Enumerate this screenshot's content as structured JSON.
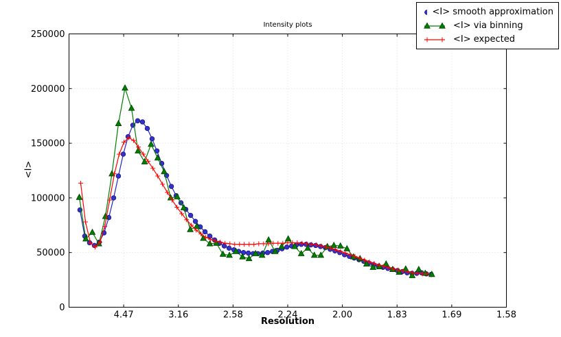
{
  "title": "Intensity plots",
  "xlabel": "Resolution",
  "ylabel": "<I>",
  "legend": [
    {
      "label": "<I> smooth approximation",
      "marker": "circle",
      "color": "#2222cc"
    },
    {
      "label": "<I> via binning",
      "marker": "triangle",
      "color": "#007f00"
    },
    {
      "label": "<I> expected",
      "marker": "plus",
      "color": "#ff0000"
    }
  ],
  "chart_data": {
    "type": "line",
    "title": "Intensity plots",
    "xlabel": "Resolution",
    "ylabel": "<I>",
    "xlim": [
      0,
      0.4
    ],
    "ylim": [
      0,
      250000
    ],
    "grid": true,
    "legend_position": "upper right outside",
    "x_ticks": [
      {
        "x": 0.05,
        "label": "4.47"
      },
      {
        "x": 0.1,
        "label": "3.16"
      },
      {
        "x": 0.15,
        "label": "2.58"
      },
      {
        "x": 0.2,
        "label": "2.24"
      },
      {
        "x": 0.25,
        "label": "2.00"
      },
      {
        "x": 0.3,
        "label": "1.83"
      },
      {
        "x": 0.35,
        "label": "1.69"
      },
      {
        "x": 0.4,
        "label": "1.58"
      }
    ],
    "y_ticks": [
      0,
      50000,
      100000,
      150000,
      200000,
      250000
    ],
    "series": [
      {
        "name": "<I> smooth approximation",
        "color": "#2222cc",
        "marker": "circle",
        "marker_fill": "#3333cc",
        "marker_edge": "#151580",
        "x_start": 0.01,
        "x_step": 0.0044,
        "values": [
          89000,
          65000,
          59000,
          56500,
          59500,
          68000,
          82000,
          100000,
          120000,
          140000,
          156000,
          166500,
          170500,
          169500,
          163500,
          154000,
          143000,
          131500,
          120500,
          110500,
          102000,
          95500,
          89500,
          84000,
          78500,
          73500,
          69000,
          65000,
          61500,
          58500,
          56000,
          54000,
          52500,
          51000,
          50000,
          49500,
          49000,
          49000,
          49500,
          50000,
          51000,
          52000,
          53500,
          55000,
          56000,
          57000,
          57500,
          57500,
          57000,
          56500,
          55500,
          54500,
          53000,
          51500,
          50000,
          48000,
          46500,
          45000,
          43500,
          42000,
          40500,
          39000,
          37500,
          36500,
          35500,
          34500,
          33500,
          32500,
          31500,
          31000,
          31000,
          31500,
          30500,
          30000
        ]
      },
      {
        "name": "<I> via binning",
        "color": "#007f00",
        "marker": "triangle",
        "marker_fill": "#008000",
        "marker_edge": "#003c00",
        "x_start": 0.0094,
        "x_step": 0.00597,
        "values": [
          100500,
          62500,
          68500,
          58000,
          83000,
          122000,
          168000,
          200500,
          182000,
          143000,
          133000,
          149000,
          136500,
          124000,
          100000,
          101000,
          91000,
          71000,
          74000,
          63000,
          58000,
          58500,
          48500,
          47500,
          51000,
          46000,
          44500,
          49000,
          47500,
          61500,
          51000,
          55500,
          62500,
          55500,
          49000,
          54000,
          47500,
          47500,
          55500,
          56500,
          56000,
          53500,
          46000,
          44500,
          39500,
          36500,
          37000,
          39500,
          34500,
          32000,
          35000,
          29000,
          34500,
          31000,
          30000
        ]
      },
      {
        "name": "<I> expected",
        "color": "#ff0000",
        "marker": "plus",
        "marker_fill": "#ff0000",
        "marker_edge": "#ff0000",
        "x_start": 0.0107,
        "x_step": 0.0044,
        "values": [
          113500,
          78000,
          59000,
          55000,
          59500,
          74000,
          98000,
          122000,
          140000,
          151000,
          155000,
          152500,
          146500,
          140000,
          133500,
          127000,
          120000,
          112500,
          105000,
          98000,
          91500,
          85500,
          80000,
          75000,
          70500,
          67000,
          64000,
          62000,
          60500,
          59500,
          58500,
          58000,
          57500,
          57500,
          57500,
          57500,
          57500,
          58000,
          58000,
          58000,
          58500,
          58500,
          58500,
          59000,
          59000,
          59000,
          58500,
          58000,
          57500,
          57000,
          56000,
          55000,
          54000,
          52500,
          51000,
          49500,
          48000,
          46500,
          45000,
          43000,
          41500,
          40000,
          38500,
          37500,
          36000,
          35000,
          34000,
          33000,
          32500,
          31500,
          31000,
          30500,
          30500
        ]
      }
    ],
    "colors": {
      "grid": "#d9d9d9",
      "frame": "#000000",
      "background": "#ffffff"
    }
  }
}
